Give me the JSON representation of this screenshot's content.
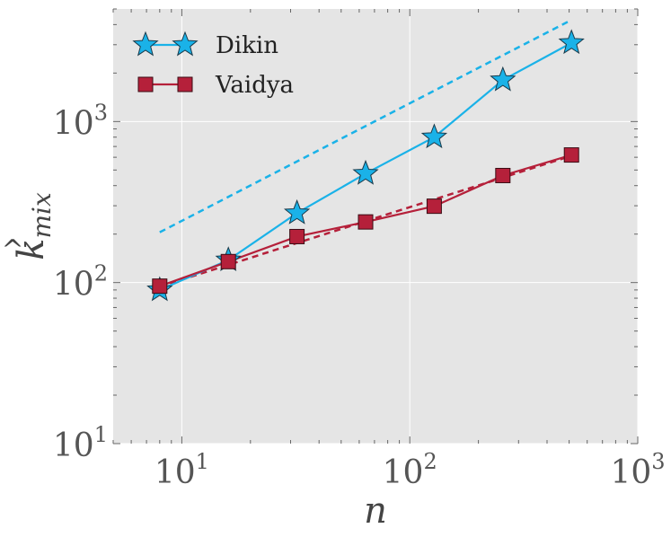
{
  "chart_data": {
    "type": "line",
    "xscale": "log",
    "yscale": "log",
    "xlim": [
      5,
      1000
    ],
    "ylim": [
      10,
      5000
    ],
    "xlabel": "n",
    "ylabel_base": "k",
    "ylabel_sub": "mix",
    "x_ticks": [
      {
        "value": 10,
        "base": "10",
        "exp": "1"
      },
      {
        "value": 100,
        "base": "10",
        "exp": "2"
      },
      {
        "value": 1000,
        "base": "10",
        "exp": "3"
      }
    ],
    "y_ticks": [
      {
        "value": 10,
        "base": "10",
        "exp": "1"
      },
      {
        "value": 100,
        "base": "10",
        "exp": "2"
      },
      {
        "value": 1000,
        "base": "10",
        "exp": "3"
      }
    ],
    "grid": true,
    "legend_position": "top-left",
    "x": [
      8,
      16,
      32,
      64,
      128,
      256,
      512
    ],
    "series": [
      {
        "name": "Dikin",
        "marker": "star",
        "color": "#1ab2e8",
        "values": [
          90,
          138,
          270,
          475,
          800,
          1810,
          3080
        ],
        "fit": {
          "a": 0.73,
          "k": 45
        }
      },
      {
        "name": "Vaidya",
        "marker": "square",
        "color": "#b5203a",
        "values": [
          95,
          135,
          193,
          238,
          298,
          462,
          620
        ],
        "fit": {
          "a": 0.45,
          "k": 37
        }
      }
    ]
  }
}
